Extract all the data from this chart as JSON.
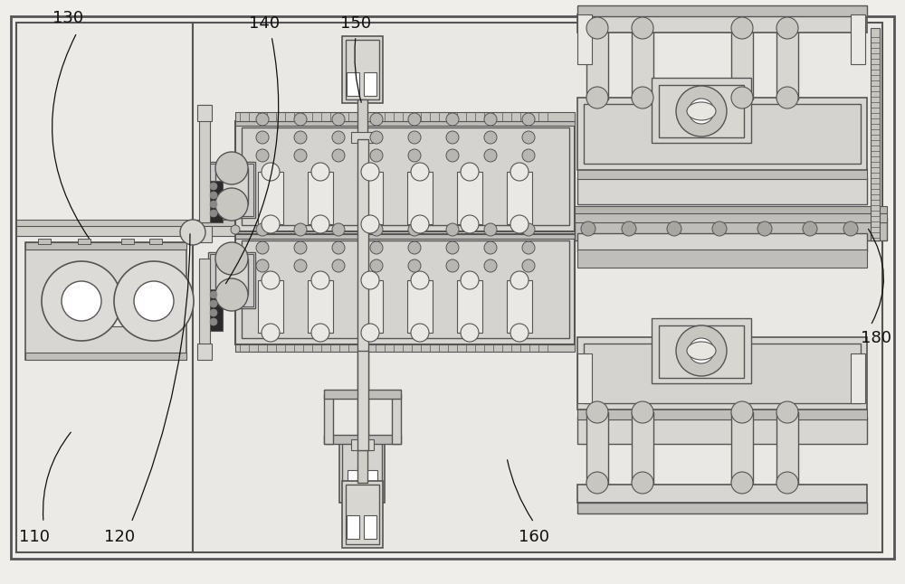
{
  "bg_color": "#f0eeea",
  "border_color": "#555555",
  "line_color": "#555555",
  "fill_light": "#e8e6e2",
  "fill_mid": "#d8d6d2",
  "fill_dark": "#c0bebb",
  "label_color": "#111111",
  "figsize": [
    10.0,
    6.46
  ],
  "dpi": 100
}
